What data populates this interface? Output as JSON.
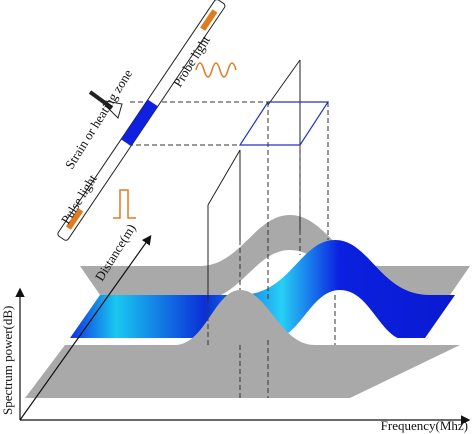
{
  "labels": {
    "probe_light": "Probe light",
    "zone": "Strain or heating zone",
    "pulse_light": "Pulse light",
    "distance_axis": "Distance(m)",
    "power_axis": "Spectrum power(dB)",
    "frequency_axis": "Frequency(Mhz)"
  }
}
